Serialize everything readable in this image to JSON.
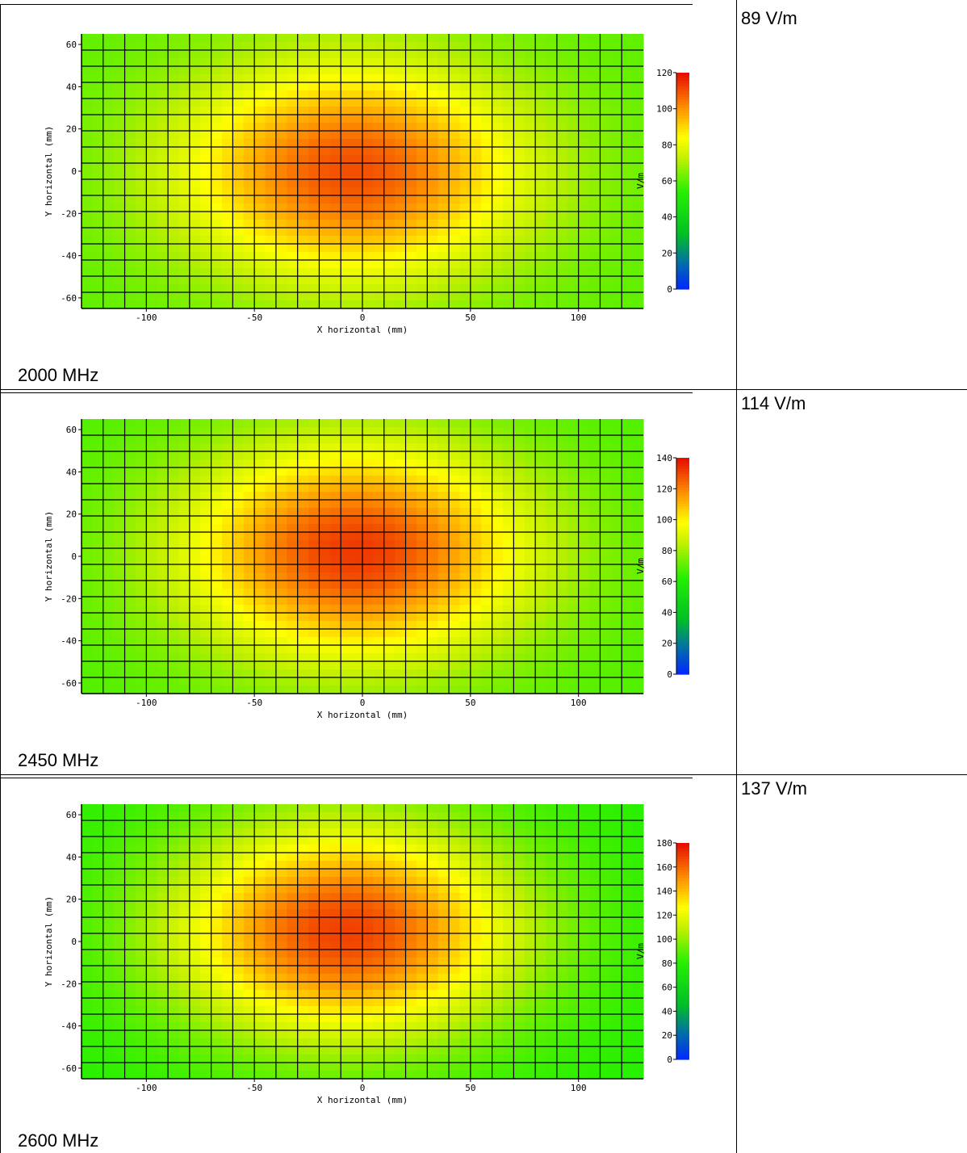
{
  "rows": [
    {
      "frequency": "2000 MHz",
      "field_value": "89 V/m"
    },
    {
      "frequency": "2450 MHz",
      "field_value": "114 V/m"
    },
    {
      "frequency": "2600 MHz",
      "field_value": "137 V/m"
    }
  ],
  "chart_data": [
    {
      "type": "heatmap",
      "xlabel": "X horizontal (mm)",
      "ylabel": "Y horizontal (mm)",
      "colorbar_label": "V/m",
      "xlim": [
        -130,
        130
      ],
      "ylim": [
        -65,
        65
      ],
      "x_ticks": [
        -100,
        -50,
        0,
        50,
        100
      ],
      "y_ticks": [
        -60,
        -40,
        -20,
        0,
        20,
        40,
        60
      ],
      "colorbar_range": [
        0,
        120
      ],
      "colorbar_ticks": [
        0,
        20,
        40,
        60,
        80,
        100,
        120
      ],
      "grid": true,
      "peak": {
        "x": -5,
        "y": 0,
        "value": 110
      },
      "edge_value": 60
    },
    {
      "type": "heatmap",
      "xlabel": "X horizontal (mm)",
      "ylabel": "Y horizontal (mm)",
      "colorbar_label": "V/m",
      "xlim": [
        -130,
        130
      ],
      "ylim": [
        -65,
        65
      ],
      "x_ticks": [
        -100,
        -50,
        0,
        50,
        100
      ],
      "y_ticks": [
        -60,
        -40,
        -20,
        0,
        20,
        40,
        60
      ],
      "colorbar_range": [
        0,
        140
      ],
      "colorbar_ticks": [
        0,
        20,
        40,
        60,
        80,
        100,
        120,
        140
      ],
      "grid": true,
      "peak": {
        "x": -3,
        "y": 2,
        "value": 132
      },
      "edge_value": 68
    },
    {
      "type": "heatmap",
      "xlabel": "X horizontal (mm)",
      "ylabel": "Y horizontal (mm)",
      "colorbar_label": "V/m",
      "xlim": [
        -130,
        130
      ],
      "ylim": [
        -65,
        65
      ],
      "x_ticks": [
        -100,
        -50,
        0,
        50,
        100
      ],
      "y_ticks": [
        -60,
        -40,
        -20,
        0,
        20,
        40,
        60
      ],
      "colorbar_range": [
        0,
        180
      ],
      "colorbar_ticks": [
        0,
        20,
        40,
        60,
        80,
        100,
        120,
        140,
        160,
        180
      ],
      "grid": true,
      "peak": {
        "x": -8,
        "y": 5,
        "value": 168
      },
      "edge_value": 80
    }
  ]
}
